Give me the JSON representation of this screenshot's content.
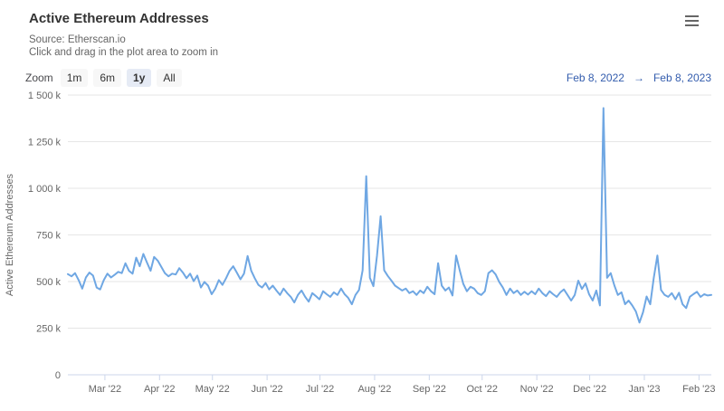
{
  "header": {
    "title": "Active Ethereum Addresses",
    "subtitle_line1": "Source: Etherscan.io",
    "subtitle_line2": "Click and drag in the plot area to zoom in"
  },
  "range_selector": {
    "zoom_label": "Zoom",
    "buttons": [
      "1m",
      "6m",
      "1y",
      "All"
    ],
    "selected": "1y",
    "from_date": "Feb 8, 2022",
    "separator": "→",
    "to_date": "Feb 8, 2023"
  },
  "menu": {
    "icon": "hamburger-menu-icon"
  },
  "colors": {
    "line": "#6fa7e3",
    "grid": "#e6e6e6",
    "axis": "#ccd6eb",
    "tick_label": "#666666",
    "title": "#333333",
    "subtitle": "#666666",
    "range_text": "#335cad",
    "button_bg": "#f7f7f7",
    "button_selected_bg": "#e6ebf5"
  },
  "chart_data": {
    "type": "line",
    "title": "Active Ethereum Addresses",
    "xlabel": "",
    "ylabel": "Active Ethereum Addresses",
    "series_name": "Active Ethereum Addresses",
    "unit": "thousand addresses (k)",
    "x_range": [
      "Feb 8, 2022",
      "Feb 8, 2023"
    ],
    "ylim_k": [
      0,
      1500
    ],
    "grid": true,
    "legend": "none",
    "y_ticks": [
      {
        "v": 0,
        "label": "0"
      },
      {
        "v": 250,
        "label": "250 k"
      },
      {
        "v": 500,
        "label": "500 k"
      },
      {
        "v": 750,
        "label": "750 k"
      },
      {
        "v": 1000,
        "label": "1 000 k"
      },
      {
        "v": 1250,
        "label": "1 250 k"
      },
      {
        "v": 1500,
        "label": "1 500 k"
      }
    ],
    "total_days": 365,
    "x_ticks": [
      {
        "label": "Mar '22",
        "day": 21
      },
      {
        "label": "Apr '22",
        "day": 52
      },
      {
        "label": "May '22",
        "day": 82
      },
      {
        "label": "Jun '22",
        "day": 113
      },
      {
        "label": "Jul '22",
        "day": 143
      },
      {
        "label": "Aug '22",
        "day": 174
      },
      {
        "label": "Sep '22",
        "day": 205
      },
      {
        "label": "Oct '22",
        "day": 235
      },
      {
        "label": "Nov '22",
        "day": 266
      },
      {
        "label": "Dec '22",
        "day": 296
      },
      {
        "label": "Jan '23",
        "day": 327
      },
      {
        "label": "Feb '23",
        "day": 358
      }
    ],
    "notable_points_k": {
      "late_jul_2022_spike": 1065,
      "mid_aug_2022_spike": 850,
      "mid_dec_2022_spike": 1430,
      "early_jan_2023_low": 280
    },
    "values_k": [
      540,
      528,
      545,
      508,
      462,
      522,
      548,
      532,
      468,
      458,
      508,
      542,
      522,
      536,
      552,
      545,
      598,
      558,
      542,
      628,
      582,
      648,
      602,
      558,
      632,
      612,
      578,
      545,
      528,
      542,
      538,
      572,
      548,
      518,
      542,
      502,
      532,
      468,
      498,
      478,
      432,
      462,
      508,
      482,
      518,
      558,
      582,
      548,
      512,
      542,
      637,
      558,
      518,
      482,
      468,
      492,
      458,
      478,
      452,
      428,
      462,
      438,
      418,
      388,
      428,
      452,
      418,
      392,
      438,
      422,
      405,
      448,
      432,
      418,
      442,
      428,
      462,
      432,
      412,
      378,
      428,
      455,
      560,
      1065,
      520,
      475,
      640,
      850,
      560,
      530,
      505,
      478,
      465,
      452,
      462,
      438,
      448,
      428,
      452,
      438,
      472,
      448,
      432,
      598,
      478,
      452,
      468,
      425,
      640,
      560,
      488,
      448,
      472,
      462,
      438,
      428,
      448,
      545,
      560,
      538,
      498,
      468,
      428,
      462,
      438,
      452,
      428,
      445,
      430,
      448,
      432,
      462,
      438,
      422,
      448,
      432,
      418,
      442,
      458,
      428,
      398,
      428,
      505,
      460,
      490,
      432,
      398,
      452,
      372,
      1430,
      520,
      545,
      480,
      428,
      442,
      378,
      398,
      372,
      340,
      280,
      335,
      420,
      378,
      520,
      640,
      455,
      428,
      418,
      438,
      405,
      440,
      378,
      358,
      418,
      432,
      445,
      418,
      432,
      425,
      428
    ]
  }
}
